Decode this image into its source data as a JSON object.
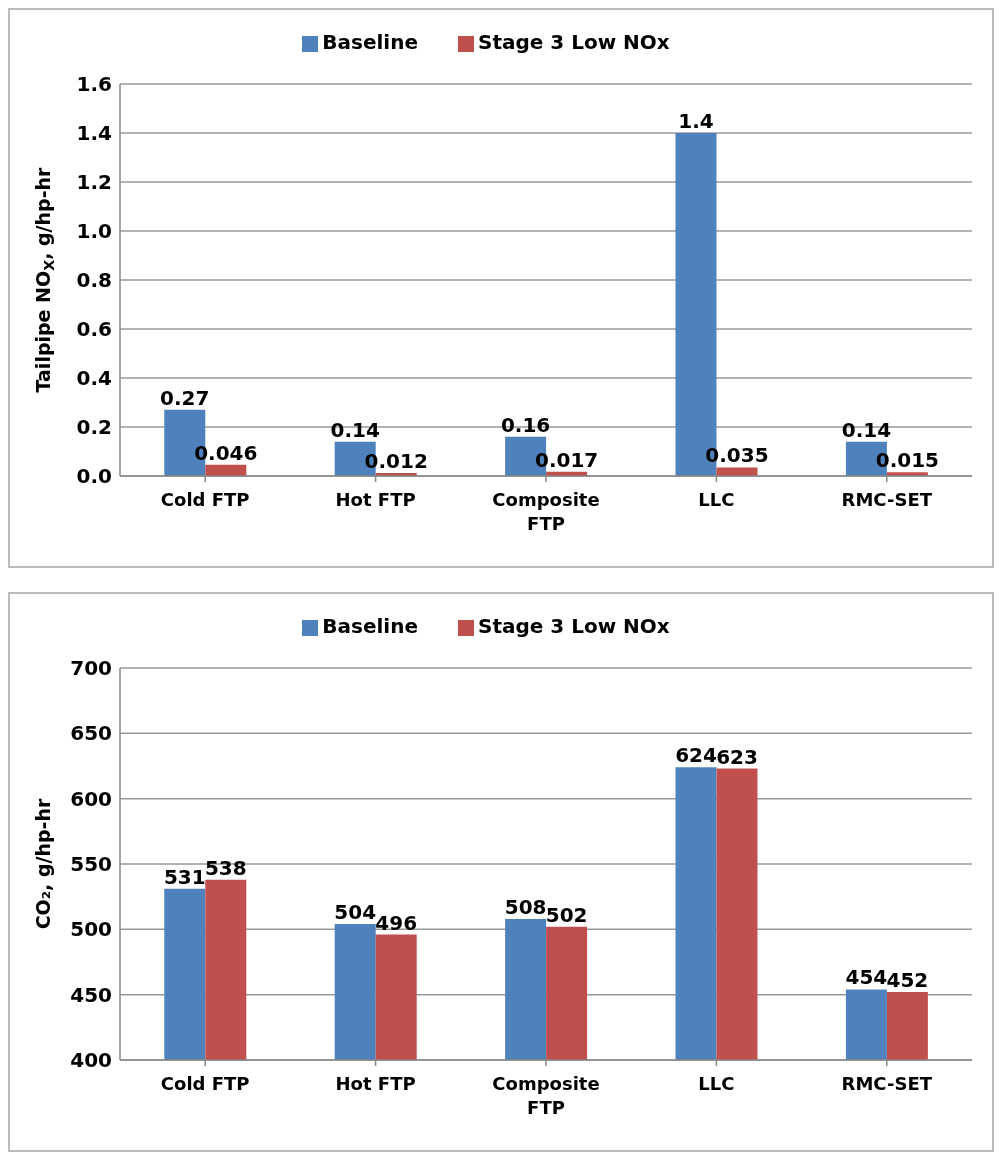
{
  "chart_data": [
    {
      "type": "bar",
      "ylabel": "Tailpipe  NO$_{X}$, g/hp-hr",
      "categories": [
        "Cold FTP",
        "Hot FTP",
        "Composite FTP",
        "LLC",
        "RMC-SET"
      ],
      "series": [
        {
          "name": "Baseline",
          "color": "#4f81bd",
          "values": [
            0.27,
            0.14,
            0.16,
            1.4,
            0.14
          ]
        },
        {
          "name": "Stage 3 Low NOx",
          "color": "#c0504d",
          "values": [
            0.046,
            0.012,
            0.017,
            0.035,
            0.015
          ]
        }
      ],
      "ylim": [
        0,
        1.6
      ],
      "yticks": [
        {
          "value": 0,
          "label": "0.0"
        },
        {
          "value": 0.2,
          "label": "0.2"
        },
        {
          "value": 0.4,
          "label": "0.4"
        },
        {
          "value": 0.6,
          "label": "0.6"
        },
        {
          "value": 0.8,
          "label": "0.8"
        },
        {
          "value": 1,
          "label": "1.0"
        },
        {
          "value": 1.2,
          "label": "1.2"
        },
        {
          "value": 1.4,
          "label": "1.4"
        },
        {
          "value": 1.6,
          "label": "1.6"
        }
      ],
      "grid": "y",
      "legend": "top",
      "data_labels": true
    },
    {
      "type": "bar",
      "ylabel": "CO₂, g/hp-hr",
      "categories": [
        "Cold FTP",
        "Hot FTP",
        "Composite FTP",
        "LLC",
        "RMC-SET"
      ],
      "series": [
        {
          "name": "Baseline",
          "color": "#4f81bd",
          "values": [
            531,
            504,
            508,
            624,
            454
          ]
        },
        {
          "name": "Stage 3 Low NOx",
          "color": "#c0504d",
          "values": [
            538,
            496,
            502,
            623,
            452
          ]
        }
      ],
      "ylim": [
        400,
        700
      ],
      "yticks": [
        400,
        450,
        500,
        550,
        600,
        650,
        700
      ],
      "grid": "y",
      "legend": "top",
      "data_labels": true
    }
  ]
}
